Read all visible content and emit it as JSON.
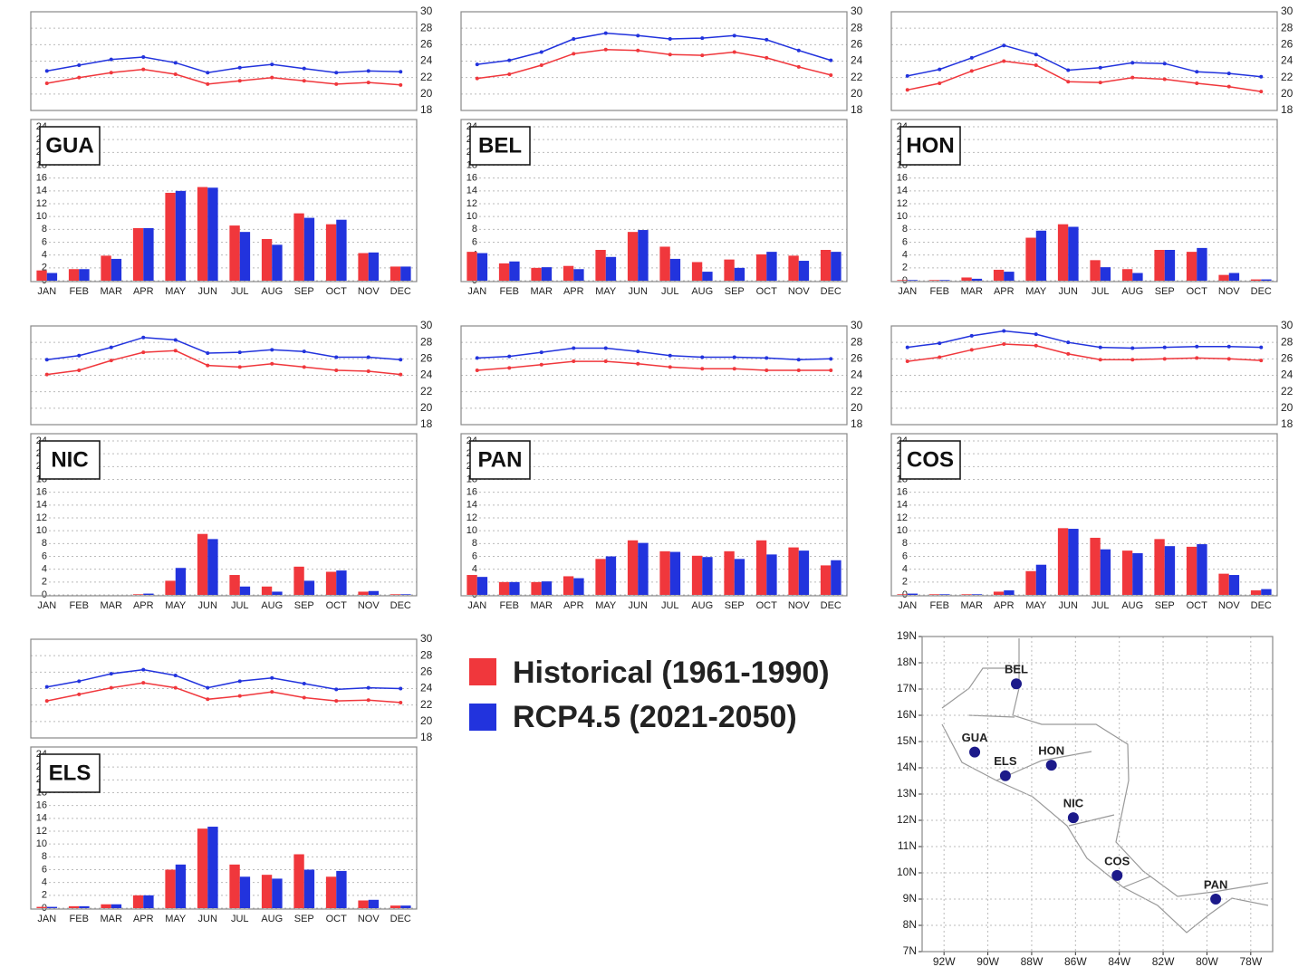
{
  "legend": [
    {
      "name": "Historical (1961-1990)",
      "color": "#f0373c"
    },
    {
      "name": "RCP4.5 (2021-2050)",
      "color": "#2233dd"
    }
  ],
  "chart_data": [
    {
      "type": "line",
      "ylim": [
        18,
        30
      ],
      "yticks": [
        18,
        20,
        22,
        24,
        26,
        28,
        30
      ],
      "grid": true,
      "series": [
        {
          "color": "#f0373c",
          "values": [
            21.3,
            22,
            22.6,
            23,
            22.4,
            21.2,
            21.6,
            22,
            21.6,
            21.2,
            21.4,
            21.1
          ]
        },
        {
          "color": "#2233dd",
          "values": [
            22.8,
            23.5,
            24.2,
            24.5,
            23.8,
            22.6,
            23.2,
            23.6,
            23.1,
            22.6,
            22.8,
            22.7
          ]
        }
      ]
    },
    {
      "type": "bar",
      "title": "GUA",
      "categories": [
        "JAN",
        "FEB",
        "MAR",
        "APR",
        "MAY",
        "JUN",
        "JUL",
        "AUG",
        "SEP",
        "OCT",
        "NOV",
        "DEC"
      ],
      "ylim": [
        0,
        24
      ],
      "yticks": [
        0,
        2,
        4,
        6,
        8,
        10,
        12,
        14,
        16,
        18,
        20,
        22,
        24
      ],
      "grid": true,
      "series": [
        {
          "color": "#f0373c",
          "values": [
            1.6,
            1.8,
            3.9,
            8.2,
            13.7,
            14.6,
            8.6,
            6.5,
            10.5,
            8.8,
            4.3,
            2.2
          ]
        },
        {
          "color": "#2233dd",
          "values": [
            1.2,
            1.8,
            3.4,
            8.2,
            14,
            14.5,
            7.6,
            5.6,
            9.8,
            9.5,
            4.4,
            2.2
          ]
        }
      ]
    },
    {
      "type": "line",
      "ylim": [
        18,
        30
      ],
      "yticks": [
        18,
        20,
        22,
        24,
        26,
        28,
        30
      ],
      "grid": true,
      "series": [
        {
          "color": "#f0373c",
          "values": [
            21.9,
            22.4,
            23.5,
            24.9,
            25.4,
            25.3,
            24.8,
            24.7,
            25.1,
            24.4,
            23.3,
            22.3
          ]
        },
        {
          "color": "#2233dd",
          "values": [
            23.6,
            24.1,
            25.1,
            26.7,
            27.4,
            27.1,
            26.7,
            26.8,
            27.1,
            26.6,
            25.3,
            24.1
          ]
        }
      ]
    },
    {
      "type": "bar",
      "title": "BEL",
      "categories": [
        "JAN",
        "FEB",
        "MAR",
        "APR",
        "MAY",
        "JUN",
        "JUL",
        "AUG",
        "SEP",
        "OCT",
        "NOV",
        "DEC"
      ],
      "ylim": [
        0,
        24
      ],
      "yticks": [
        0,
        2,
        4,
        6,
        8,
        10,
        12,
        14,
        16,
        18,
        20,
        22,
        24
      ],
      "grid": true,
      "series": [
        {
          "color": "#f0373c",
          "values": [
            4.5,
            2.7,
            2,
            2.3,
            4.8,
            7.6,
            5.3,
            2.9,
            3.3,
            4.1,
            3.9,
            4.8
          ]
        },
        {
          "color": "#2233dd",
          "values": [
            4.3,
            3,
            2.1,
            1.8,
            3.7,
            7.9,
            3.4,
            1.4,
            2,
            4.5,
            3.1,
            4.5
          ]
        }
      ]
    },
    {
      "type": "line",
      "ylim": [
        18,
        30
      ],
      "yticks": [
        18,
        20,
        22,
        24,
        26,
        28,
        30
      ],
      "grid": true,
      "series": [
        {
          "color": "#f0373c",
          "values": [
            20.5,
            21.3,
            22.8,
            24,
            23.5,
            21.5,
            21.4,
            22,
            21.8,
            21.3,
            20.9,
            20.3
          ]
        },
        {
          "color": "#2233dd",
          "values": [
            22.2,
            23,
            24.4,
            25.9,
            24.8,
            22.9,
            23.2,
            23.8,
            23.7,
            22.7,
            22.5,
            22.1
          ]
        }
      ]
    },
    {
      "type": "bar",
      "title": "HON",
      "categories": [
        "JAN",
        "FEB",
        "MAR",
        "APR",
        "MAY",
        "JUN",
        "JUL",
        "AUG",
        "SEP",
        "OCT",
        "NOV",
        "DEC"
      ],
      "ylim": [
        0,
        24
      ],
      "yticks": [
        0,
        2,
        4,
        6,
        8,
        10,
        12,
        14,
        16,
        18,
        20,
        22,
        24
      ],
      "grid": true,
      "series": [
        {
          "color": "#f0373c",
          "values": [
            0.1,
            0.1,
            0.5,
            1.7,
            6.7,
            8.8,
            3.2,
            1.8,
            4.8,
            4.5,
            0.9,
            0.2
          ]
        },
        {
          "color": "#2233dd",
          "values": [
            0.1,
            0.1,
            0.3,
            1.4,
            7.8,
            8.4,
            2.1,
            1.2,
            4.8,
            5.1,
            1.2,
            0.2
          ]
        }
      ]
    },
    {
      "type": "line",
      "ylim": [
        18,
        30
      ],
      "yticks": [
        18,
        20,
        22,
        24,
        26,
        28,
        30
      ],
      "grid": true,
      "series": [
        {
          "color": "#f0373c",
          "values": [
            24.1,
            24.6,
            25.8,
            26.8,
            27,
            25.2,
            25,
            25.4,
            25,
            24.6,
            24.5,
            24.1
          ]
        },
        {
          "color": "#2233dd",
          "values": [
            25.9,
            26.4,
            27.4,
            28.6,
            28.3,
            26.7,
            26.8,
            27.1,
            26.9,
            26.2,
            26.2,
            25.9
          ]
        }
      ]
    },
    {
      "type": "bar",
      "title": "NIC",
      "categories": [
        "JAN",
        "FEB",
        "MAR",
        "APR",
        "MAY",
        "JUN",
        "JUL",
        "AUG",
        "SEP",
        "OCT",
        "NOV",
        "DEC"
      ],
      "ylim": [
        0,
        24
      ],
      "yticks": [
        0,
        2,
        4,
        6,
        8,
        10,
        12,
        14,
        16,
        18,
        20,
        22,
        24
      ],
      "grid": true,
      "series": [
        {
          "color": "#f0373c",
          "values": [
            0,
            0,
            0,
            0.1,
            2.2,
            9.5,
            3.1,
            1.3,
            4.4,
            3.6,
            0.5,
            0.1
          ]
        },
        {
          "color": "#2233dd",
          "values": [
            0,
            0,
            0,
            0.2,
            4.2,
            8.7,
            1.3,
            0.5,
            2.2,
            3.8,
            0.6,
            0.1
          ]
        }
      ]
    },
    {
      "type": "line",
      "ylim": [
        18,
        30
      ],
      "yticks": [
        18,
        20,
        22,
        24,
        26,
        28,
        30
      ],
      "grid": true,
      "series": [
        {
          "color": "#f0373c",
          "values": [
            24.6,
            24.9,
            25.3,
            25.7,
            25.7,
            25.4,
            25,
            24.8,
            24.8,
            24.6,
            24.6,
            24.6
          ]
        },
        {
          "color": "#2233dd",
          "values": [
            26.1,
            26.3,
            26.8,
            27.3,
            27.3,
            26.9,
            26.4,
            26.2,
            26.2,
            26.1,
            25.9,
            26
          ]
        }
      ]
    },
    {
      "type": "bar",
      "title": "PAN",
      "categories": [
        "JAN",
        "FEB",
        "MAR",
        "APR",
        "MAY",
        "JUN",
        "JUL",
        "AUG",
        "SEP",
        "OCT",
        "NOV",
        "DEC"
      ],
      "ylim": [
        0,
        24
      ],
      "yticks": [
        0,
        2,
        4,
        6,
        8,
        10,
        12,
        14,
        16,
        18,
        20,
        22,
        24
      ],
      "grid": true,
      "series": [
        {
          "color": "#f0373c",
          "values": [
            3.1,
            2,
            2,
            2.9,
            5.6,
            8.5,
            6.8,
            6.1,
            6.8,
            8.5,
            7.4,
            4.6
          ]
        },
        {
          "color": "#2233dd",
          "values": [
            2.8,
            2,
            2.1,
            2.6,
            6,
            8.1,
            6.7,
            5.9,
            5.6,
            6.3,
            6.9,
            5.4
          ]
        }
      ]
    },
    {
      "type": "line",
      "ylim": [
        18,
        30
      ],
      "yticks": [
        18,
        20,
        22,
        24,
        26,
        28,
        30
      ],
      "grid": true,
      "series": [
        {
          "color": "#f0373c",
          "values": [
            25.7,
            26.2,
            27.1,
            27.8,
            27.6,
            26.6,
            25.9,
            25.9,
            26,
            26.1,
            26,
            25.8
          ]
        },
        {
          "color": "#2233dd",
          "values": [
            27.4,
            27.9,
            28.8,
            29.4,
            29,
            28,
            27.4,
            27.3,
            27.4,
            27.5,
            27.5,
            27.4
          ]
        }
      ]
    },
    {
      "type": "bar",
      "title": "COS",
      "categories": [
        "JAN",
        "FEB",
        "MAR",
        "APR",
        "MAY",
        "JUN",
        "JUL",
        "AUG",
        "SEP",
        "OCT",
        "NOV",
        "DEC"
      ],
      "ylim": [
        0,
        24
      ],
      "yticks": [
        0,
        2,
        4,
        6,
        8,
        10,
        12,
        14,
        16,
        18,
        20,
        22,
        24
      ],
      "grid": true,
      "series": [
        {
          "color": "#f0373c",
          "values": [
            0.1,
            0.1,
            0.1,
            0.5,
            3.7,
            10.4,
            8.9,
            6.9,
            8.7,
            7.5,
            3.3,
            0.7
          ]
        },
        {
          "color": "#2233dd",
          "values": [
            0.2,
            0.1,
            0.1,
            0.7,
            4.7,
            10.3,
            7.1,
            6.5,
            7.6,
            7.9,
            3.1,
            0.9
          ]
        }
      ]
    },
    {
      "type": "line",
      "ylim": [
        18,
        30
      ],
      "yticks": [
        18,
        20,
        22,
        24,
        26,
        28,
        30
      ],
      "grid": true,
      "series": [
        {
          "color": "#f0373c",
          "values": [
            22.5,
            23.3,
            24.1,
            24.7,
            24.1,
            22.7,
            23.1,
            23.6,
            22.9,
            22.5,
            22.6,
            22.3
          ]
        },
        {
          "color": "#2233dd",
          "values": [
            24.2,
            24.9,
            25.8,
            26.3,
            25.6,
            24.1,
            24.9,
            25.3,
            24.6,
            23.9,
            24.1,
            24
          ]
        }
      ]
    },
    {
      "type": "bar",
      "title": "ELS",
      "categories": [
        "JAN",
        "FEB",
        "MAR",
        "APR",
        "MAY",
        "JUN",
        "JUL",
        "AUG",
        "SEP",
        "OCT",
        "NOV",
        "DEC"
      ],
      "ylim": [
        0,
        24
      ],
      "yticks": [
        0,
        2,
        4,
        6,
        8,
        10,
        12,
        14,
        16,
        18,
        20,
        22,
        24
      ],
      "grid": true,
      "series": [
        {
          "color": "#f0373c",
          "values": [
            0.2,
            0.3,
            0.6,
            2,
            6,
            12.4,
            6.8,
            5.2,
            8.4,
            4.9,
            1.2,
            0.4
          ]
        },
        {
          "color": "#2233dd",
          "values": [
            0.2,
            0.3,
            0.6,
            2,
            6.8,
            12.7,
            4.9,
            4.6,
            6,
            5.8,
            1.3,
            0.4
          ]
        }
      ]
    },
    {
      "type": "scatter",
      "color": "#1c1a8a",
      "grid": true,
      "xlim": [
        -93,
        -77
      ],
      "ylim": [
        7,
        19
      ],
      "xticks": [
        {
          "value": -92,
          "label": "92W"
        },
        {
          "value": -90,
          "label": "90W"
        },
        {
          "value": -88,
          "label": "88W"
        },
        {
          "value": -86,
          "label": "86W"
        },
        {
          "value": -84,
          "label": "84W"
        },
        {
          "value": -82,
          "label": "82W"
        },
        {
          "value": -80,
          "label": "80W"
        },
        {
          "value": -78,
          "label": "78W"
        }
      ],
      "yticks": [
        {
          "value": 7,
          "label": "7N"
        },
        {
          "value": 8,
          "label": "8N"
        },
        {
          "value": 9,
          "label": "9N"
        },
        {
          "value": 10,
          "label": "10N"
        },
        {
          "value": 11,
          "label": "11N"
        },
        {
          "value": 12,
          "label": "12N"
        },
        {
          "value": 13,
          "label": "13N"
        },
        {
          "value": 14,
          "label": "14N"
        },
        {
          "value": 15,
          "label": "15N"
        },
        {
          "value": 16,
          "label": "16N"
        },
        {
          "value": 17,
          "label": "17N"
        },
        {
          "value": 18,
          "label": "18N"
        },
        {
          "value": 19,
          "label": "19N"
        }
      ],
      "labels": [
        "BEL",
        "GUA",
        "ELS",
        "HON",
        "NIC",
        "COS",
        "PAN"
      ],
      "x": [
        -88.7,
        -90.6,
        -89.2,
        -87.1,
        -86.1,
        -84.1,
        -79.6
      ],
      "values": [
        17.2,
        14.6,
        13.7,
        14.1,
        12.1,
        9.9,
        9.0
      ]
    }
  ]
}
